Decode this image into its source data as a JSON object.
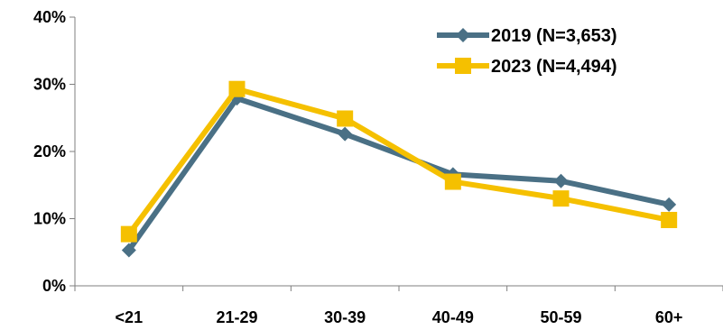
{
  "chart_data": {
    "type": "line",
    "title": "",
    "xlabel": "",
    "ylabel": "",
    "categories": [
      "<21",
      "21-29",
      "30-39",
      "40-49",
      "50-59",
      "60+"
    ],
    "ylim": [
      0,
      40
    ],
    "yticks": [
      0,
      10,
      20,
      30,
      40
    ],
    "ytick_labels": [
      "0%",
      "10%",
      "20%",
      "30%",
      "40%"
    ],
    "grid": false,
    "legend_placement": "top-right",
    "series": [
      {
        "name": "2019 (N=3,653)",
        "marker": "diamond",
        "color": "#4a7085",
        "values": [
          5.3,
          27.9,
          22.6,
          16.6,
          15.6,
          12.1
        ]
      },
      {
        "name": "2023 (N=4,494)",
        "marker": "square",
        "color": "#f5c000",
        "values": [
          7.7,
          29.3,
          24.9,
          15.5,
          13.0,
          9.8
        ]
      }
    ]
  }
}
